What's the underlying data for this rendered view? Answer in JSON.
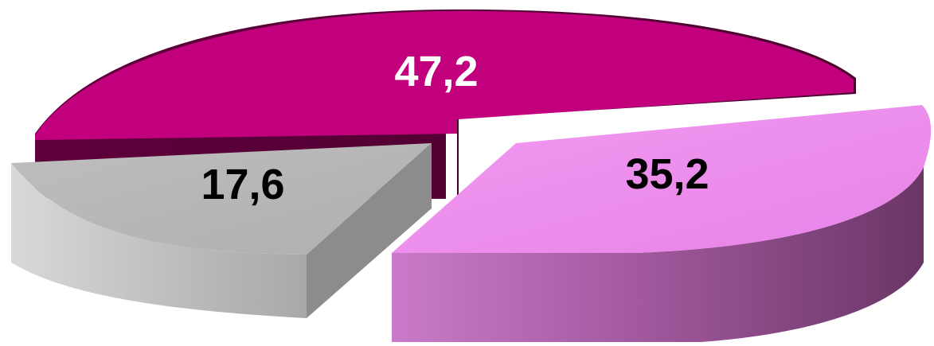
{
  "chart_data": {
    "type": "pie",
    "style": "3d-exploded",
    "title": "",
    "decimal_separator": ",",
    "slices": [
      {
        "value": 47.2,
        "label": "47,2",
        "color": "#C2007E",
        "side_color": "#5A0038",
        "label_color": "#FFFFFF"
      },
      {
        "value": 35.2,
        "label": "35,2",
        "color": "#EE8AEE",
        "side_color": "#6E3A6A",
        "label_color": "#000000"
      },
      {
        "value": 17.6,
        "label": "17,6",
        "color": "#B4B4B4",
        "side_color": "#8C8C8C",
        "label_color": "#000000"
      }
    ]
  }
}
